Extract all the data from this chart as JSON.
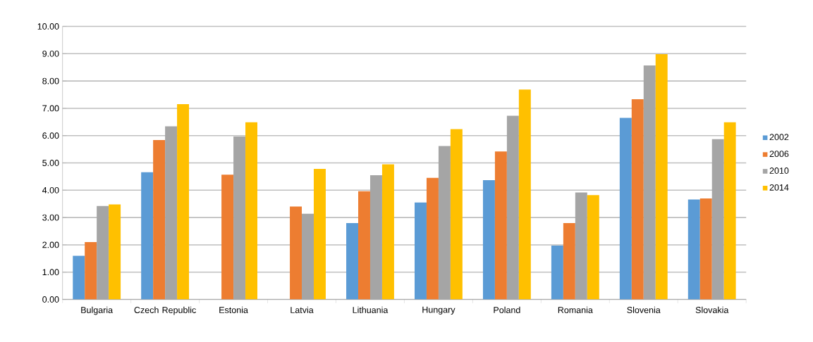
{
  "chart_data": {
    "type": "bar",
    "categories": [
      "Bulgaria",
      "Czech Republic",
      "Estonia",
      "Latvia",
      "Lithuania",
      "Hungary",
      "Poland",
      "Romania",
      "Slovenia",
      "Slovakia"
    ],
    "series": [
      {
        "name": "2002",
        "color": "#5b9bd5",
        "values": [
          1.6,
          4.66,
          null,
          null,
          2.8,
          3.55,
          4.37,
          1.97,
          6.65,
          3.66
        ]
      },
      {
        "name": "2006",
        "color": "#ed7d31",
        "values": [
          2.1,
          5.84,
          4.57,
          3.4,
          3.96,
          4.45,
          5.42,
          2.8,
          7.33,
          3.7
        ]
      },
      {
        "name": "2010",
        "color": "#a5a5a5",
        "values": [
          3.42,
          6.34,
          5.97,
          3.14,
          4.55,
          5.62,
          6.73,
          3.92,
          8.57,
          5.87
        ]
      },
      {
        "name": "2014",
        "color": "#ffc000",
        "values": [
          3.48,
          7.15,
          6.49,
          4.78,
          4.95,
          6.24,
          7.69,
          3.82,
          8.98,
          6.49
        ]
      }
    ],
    "ylim": [
      0,
      10
    ],
    "yticks": [
      {
        "value": 0,
        "label": "0.00"
      },
      {
        "value": 1,
        "label": "1.00"
      },
      {
        "value": 2,
        "label": "2.00"
      },
      {
        "value": 3,
        "label": "3.00"
      },
      {
        "value": 4,
        "label": "4.00"
      },
      {
        "value": 5,
        "label": "5.00"
      },
      {
        "value": 6,
        "label": "6.00"
      },
      {
        "value": 7,
        "label": "7.00"
      },
      {
        "value": 8,
        "label": "8.00"
      },
      {
        "value": 9,
        "label": "9.00"
      },
      {
        "value": 10,
        "label": "10.00"
      }
    ],
    "grid": "y",
    "legend": "right"
  }
}
